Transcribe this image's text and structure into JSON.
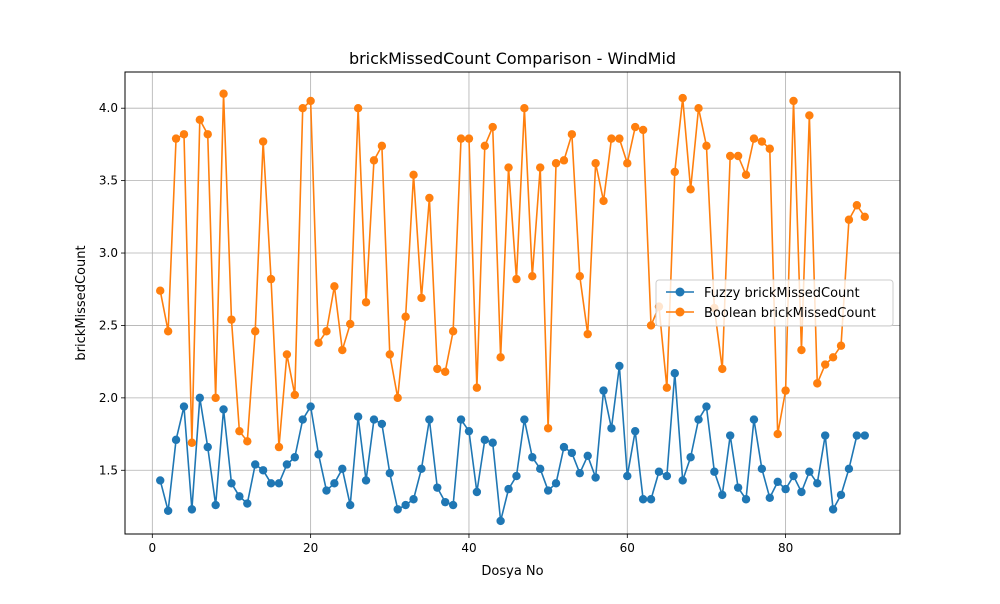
{
  "chart_data": {
    "type": "line",
    "title": "brickMissedCount Comparison - WindMid",
    "xlabel": "Dosya No",
    "ylabel": "brickMissedCount",
    "xlim": [
      -3.45,
      94.45
    ],
    "ylim": [
      1.06,
      4.25
    ],
    "x_ticks": [
      0,
      20,
      40,
      60,
      80
    ],
    "x_tick_labels": [
      "0",
      "20",
      "40",
      "60",
      "80"
    ],
    "y_ticks": [
      1.5,
      2.0,
      2.5,
      3.0,
      3.5,
      4.0
    ],
    "y_tick_labels": [
      "1.5",
      "2.0",
      "2.5",
      "3.0",
      "3.5",
      "4.0"
    ],
    "grid": true,
    "legend_position": "center-right",
    "x": [
      1,
      2,
      3,
      4,
      5,
      6,
      7,
      8,
      9,
      10,
      11,
      12,
      13,
      14,
      15,
      16,
      17,
      18,
      19,
      20,
      21,
      22,
      23,
      24,
      25,
      26,
      27,
      28,
      29,
      30,
      31,
      32,
      33,
      34,
      35,
      36,
      37,
      38,
      39,
      40,
      41,
      42,
      43,
      44,
      45,
      46,
      47,
      48,
      49,
      50,
      51,
      52,
      53,
      54,
      55,
      56,
      57,
      58,
      59,
      60,
      61,
      62,
      63,
      64,
      65,
      66,
      67,
      68,
      69,
      70,
      71,
      72,
      73,
      74,
      75,
      76,
      77,
      78,
      79,
      80,
      81,
      82,
      83,
      84,
      85,
      86,
      87,
      88,
      89,
      90
    ],
    "series": [
      {
        "name": "Fuzzy brickMissedCount",
        "color": "#1f77b4",
        "values": [
          1.43,
          1.22,
          1.71,
          1.94,
          1.23,
          2.0,
          1.66,
          1.26,
          1.92,
          1.41,
          1.32,
          1.27,
          1.54,
          1.5,
          1.41,
          1.41,
          1.54,
          1.59,
          1.85,
          1.94,
          1.61,
          1.36,
          1.41,
          1.51,
          1.26,
          1.87,
          1.43,
          1.85,
          1.82,
          1.48,
          1.23,
          1.26,
          1.3,
          1.51,
          1.85,
          1.38,
          1.28,
          1.26,
          1.85,
          1.77,
          1.35,
          1.71,
          1.69,
          1.15,
          1.37,
          1.46,
          1.85,
          1.59,
          1.51,
          1.36,
          1.41,
          1.66,
          1.62,
          1.48,
          1.6,
          1.45,
          2.05,
          1.79,
          2.22,
          1.46,
          1.77,
          1.3,
          1.3,
          1.49,
          1.46,
          2.17,
          1.43,
          1.59,
          1.85,
          1.94,
          1.49,
          1.33,
          1.74,
          1.38,
          1.3,
          1.85,
          1.51,
          1.31,
          1.42,
          1.37,
          1.46,
          1.35,
          1.49,
          1.41,
          1.74,
          1.23,
          1.33,
          1.51,
          1.74,
          1.74
        ]
      },
      {
        "name": "Boolean brickMissedCount",
        "color": "#ff7f0e",
        "values": [
          2.74,
          2.46,
          3.79,
          3.82,
          1.69,
          3.92,
          3.82,
          2.0,
          4.1,
          2.54,
          1.77,
          1.7,
          2.46,
          3.77,
          2.82,
          1.66,
          2.3,
          2.02,
          4.0,
          4.05,
          2.38,
          2.46,
          2.77,
          2.33,
          2.51,
          4.0,
          2.66,
          3.64,
          3.74,
          2.3,
          2.0,
          2.56,
          3.54,
          2.69,
          3.38,
          2.2,
          2.18,
          2.46,
          3.79,
          3.79,
          2.07,
          3.74,
          3.87,
          2.28,
          3.59,
          2.82,
          4.0,
          2.84,
          3.59,
          1.79,
          3.62,
          3.64,
          3.82,
          2.84,
          2.44,
          3.62,
          3.36,
          3.79,
          3.79,
          3.62,
          3.87,
          3.85,
          2.5,
          2.63,
          2.07,
          3.56,
          4.07,
          3.44,
          4.0,
          3.74,
          2.62,
          2.2,
          3.67,
          3.67,
          3.54,
          3.79,
          3.77,
          3.72,
          1.75,
          2.05,
          4.05,
          2.33,
          3.95,
          2.1,
          2.23,
          2.28,
          2.36,
          3.23,
          3.33,
          3.25
        ]
      }
    ]
  }
}
